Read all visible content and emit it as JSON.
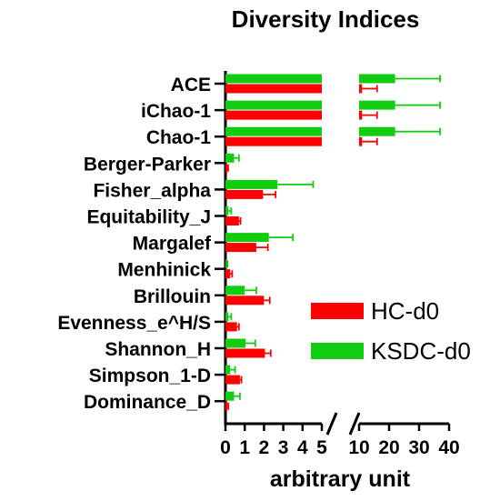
{
  "chart_data": {
    "type": "bar",
    "orientation": "horizontal",
    "title": "Diversity Indices",
    "xlabel": "arbitrary unit",
    "ylabel": "",
    "axis_break": true,
    "x_segments": [
      {
        "range": [
          0,
          5
        ],
        "ticks": [
          "0",
          "1",
          "2",
          "3",
          "4",
          "5"
        ]
      },
      {
        "range": [
          10,
          40
        ],
        "ticks": [
          "10",
          "20",
          "30",
          "40"
        ]
      }
    ],
    "categories": [
      "ACE",
      "iChao-1",
      "Chao-1",
      "Berger-Parker",
      "Fisher_alpha",
      "Equitability_J",
      "Margalef",
      "Menhinick",
      "Brillouin",
      "Evenness_e^H/S",
      "Shannon_H",
      "Simpson_1-D",
      "Dominance_D"
    ],
    "series": [
      {
        "name": "HC-d0",
        "color": "#ff0000",
        "values": [
          11.0,
          11.0,
          11.0,
          0.1,
          1.95,
          0.7,
          1.6,
          0.25,
          2.0,
          0.6,
          2.05,
          0.75,
          0.1
        ],
        "errors": [
          5.0,
          5.0,
          5.0,
          0.04,
          0.65,
          0.08,
          0.6,
          0.1,
          0.3,
          0.1,
          0.3,
          0.08,
          0.05
        ]
      },
      {
        "name": "KSDC-d0",
        "color": "#11cc11",
        "values": [
          22.0,
          22.0,
          22.0,
          0.45,
          2.7,
          0.15,
          2.25,
          0.05,
          1.0,
          0.15,
          1.05,
          0.25,
          0.45
        ],
        "errors": [
          15.0,
          15.0,
          15.0,
          0.25,
          1.85,
          0.15,
          1.25,
          0.05,
          0.6,
          0.15,
          0.5,
          0.25,
          0.3
        ]
      }
    ],
    "legend_position": "right",
    "grid": false
  }
}
